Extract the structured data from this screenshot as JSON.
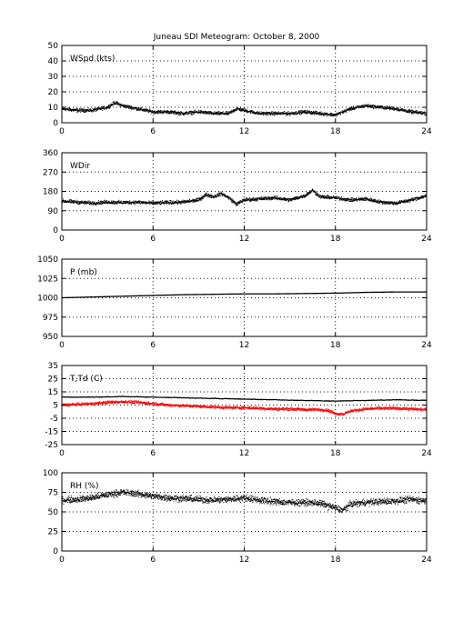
{
  "figure": {
    "title": "Juneau SDI Meteogram:    October  8, 2000"
  },
  "colors": {
    "background": "#ffffff",
    "axes": "#000000",
    "observation_dots": "#000000",
    "dewpoint_dots": "#ff0000"
  },
  "chart_data": [
    {
      "type": "scatter",
      "id": "wspd",
      "panel_label": "WSpd (kts)",
      "xlim": [
        0,
        24
      ],
      "xticks": [
        0,
        6,
        12,
        18,
        24
      ],
      "ylim": [
        0,
        50
      ],
      "yticks": [
        0,
        10,
        20,
        30,
        40,
        50
      ],
      "grid": true,
      "series": [
        {
          "color": "#000000",
          "x": [
            0,
            1,
            2,
            3,
            3.5,
            4,
            5,
            6,
            7,
            8,
            9,
            10,
            11,
            11.5,
            12,
            13,
            14,
            15,
            16,
            17,
            18,
            18.5,
            19,
            20,
            21,
            22,
            23,
            24
          ],
          "y": [
            9,
            8,
            8,
            10,
            13,
            11,
            9,
            7,
            7,
            6,
            7,
            6,
            6,
            9,
            8,
            6,
            6,
            6,
            7,
            6,
            5,
            7,
            9,
            11,
            10,
            9,
            7,
            6
          ],
          "scatter": 1.6
        }
      ]
    },
    {
      "type": "scatter",
      "id": "wdir",
      "panel_label": "WDir",
      "xlim": [
        0,
        24
      ],
      "xticks": [
        0,
        6,
        12,
        18,
        24
      ],
      "ylim": [
        0,
        360
      ],
      "yticks": [
        0,
        90,
        180,
        270,
        360
      ],
      "grid": true,
      "series": [
        {
          "color": "#000000",
          "x": [
            0,
            1,
            2,
            3,
            4,
            5,
            6,
            7,
            8,
            9,
            9.5,
            10,
            10.5,
            11,
            11.5,
            12,
            13,
            14,
            15,
            16,
            16.5,
            17,
            18,
            19,
            20,
            21,
            22,
            23,
            24
          ],
          "y": [
            135,
            130,
            125,
            130,
            128,
            130,
            125,
            128,
            130,
            140,
            165,
            155,
            170,
            150,
            120,
            140,
            145,
            150,
            140,
            160,
            185,
            155,
            150,
            140,
            145,
            130,
            125,
            140,
            160
          ],
          "scatter": 12
        }
      ]
    },
    {
      "type": "line",
      "id": "pressure",
      "panel_label": "P (mb)",
      "xlim": [
        0,
        24
      ],
      "xticks": [
        0,
        6,
        12,
        18,
        24
      ],
      "ylim": [
        950,
        1050
      ],
      "yticks": [
        950,
        975,
        1000,
        1025,
        1050
      ],
      "grid": true,
      "series": [
        {
          "color": "#000000",
          "x": [
            0,
            2,
            4,
            6,
            8,
            10,
            12,
            14,
            16,
            18,
            20,
            22,
            24
          ],
          "y": [
            1000,
            1001,
            1002,
            1003,
            1004,
            1004.5,
            1005,
            1005,
            1005.5,
            1006,
            1007,
            1007.5,
            1007.5
          ]
        }
      ]
    },
    {
      "type": "scatter",
      "id": "temp_dewpoint",
      "panel_label": "T,Td (C)",
      "xlim": [
        0,
        24
      ],
      "xticks": [
        0,
        6,
        12,
        18,
        24
      ],
      "ylim": [
        -25,
        35
      ],
      "yticks": [
        -25,
        -15,
        -5,
        5,
        15,
        25,
        35
      ],
      "grid": true,
      "series": [
        {
          "color": "#000000",
          "style": "line",
          "x": [
            0,
            2,
            4,
            6,
            8,
            10,
            12,
            14,
            16,
            18,
            20,
            22,
            24
          ],
          "y": [
            11,
            11,
            11.5,
            11,
            10.5,
            10,
            9.5,
            9,
            8.5,
            8,
            8.5,
            9,
            8.5
          ]
        },
        {
          "color": "#ff0000",
          "style": "dots",
          "x": [
            0,
            1,
            2,
            3,
            4,
            5,
            6,
            7,
            8,
            9,
            10,
            11,
            12,
            13,
            14,
            15,
            16,
            17,
            17.5,
            18,
            18.5,
            19,
            20,
            21,
            22,
            23,
            24
          ],
          "y": [
            5,
            5.5,
            6,
            7,
            7.5,
            7,
            6,
            5,
            4.5,
            4,
            3.5,
            3,
            3,
            2.5,
            2,
            2,
            1.5,
            1.5,
            1,
            -1.5,
            -2,
            0.5,
            2,
            2.5,
            2.5,
            2,
            1.5
          ],
          "scatter": 1.6
        }
      ]
    },
    {
      "type": "scatter",
      "id": "rh",
      "panel_label": "RH (%)",
      "xlim": [
        0,
        24
      ],
      "xticks": [
        0,
        6,
        12,
        18,
        24
      ],
      "ylim": [
        0,
        100
      ],
      "yticks": [
        0,
        25,
        50,
        75,
        100
      ],
      "grid": true,
      "series": [
        {
          "color": "#000000",
          "x": [
            0,
            1,
            2,
            3,
            4,
            5,
            6,
            7,
            8,
            9,
            10,
            11,
            12,
            13,
            14,
            15,
            16,
            17,
            18,
            18.5,
            19,
            20,
            21,
            22,
            23,
            24
          ],
          "y": [
            65,
            66,
            68,
            72,
            75,
            73,
            70,
            68,
            67,
            66,
            65,
            66,
            68,
            65,
            63,
            62,
            62,
            61,
            55,
            52,
            60,
            62,
            63,
            64,
            66,
            64
          ],
          "scatter": 6
        }
      ]
    }
  ]
}
